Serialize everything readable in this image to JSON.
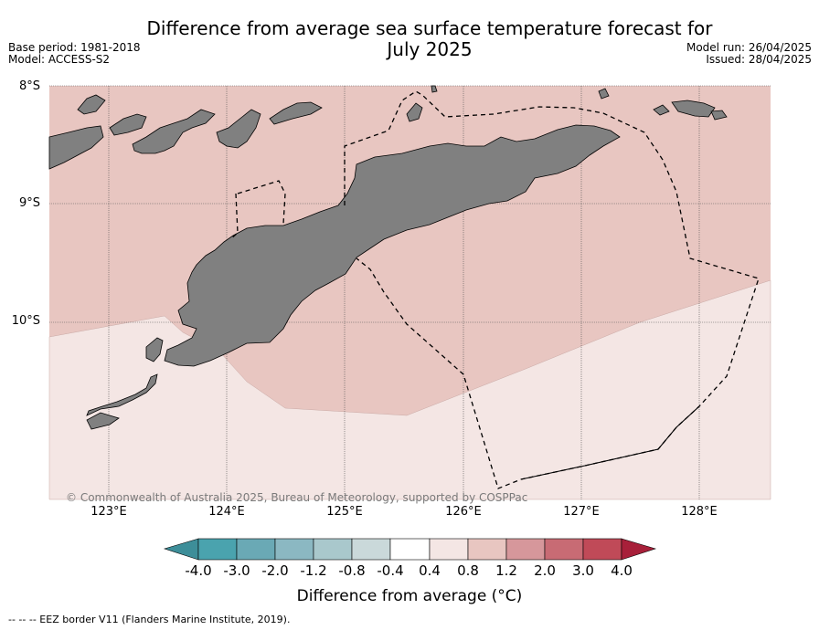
{
  "title": "Difference from average sea surface temperature forecast for July 2025",
  "title_line1": "Difference from average sea surface temperature forecast for",
  "title_line2": "July 2025",
  "meta": {
    "base_period": "Base period: 1981-2018",
    "model": "Model: ACCESS-S2",
    "model_run": "Model run: 26/04/2025",
    "issued": "Issued: 28/04/2025"
  },
  "map": {
    "lon_range": [
      122.5,
      128.6
    ],
    "lat_range": [
      -11.5,
      -8.0
    ],
    "lat_ticks": [
      {
        "value": -8,
        "label": "8°S"
      },
      {
        "value": -9,
        "label": "9°S"
      },
      {
        "value": -10,
        "label": "10°S"
      }
    ],
    "lon_ticks": [
      {
        "value": 123,
        "label": "123°E"
      },
      {
        "value": 124,
        "label": "124°E"
      },
      {
        "value": 125,
        "label": "125°E"
      },
      {
        "value": 126,
        "label": "126°E"
      },
      {
        "value": 127,
        "label": "127°E"
      },
      {
        "value": 128,
        "label": "128°E"
      }
    ],
    "colors": {
      "anomaly_0_8_to_1_2": "#e8c6c1",
      "anomaly_0_4_to_0_8": "#f4e6e4",
      "land": "#808080",
      "eez_border": "#000000"
    }
  },
  "copyright": "© Commonwealth of Australia 2025, Bureau of Meteorology, supported by COSPPac",
  "colorbar": {
    "title": "Difference from average (°C)",
    "labels": [
      "-4.0",
      "-3.0",
      "-2.0",
      "-1.2",
      "-0.8",
      "-0.4",
      "0.4",
      "0.8",
      "1.2",
      "2.0",
      "3.0",
      "4.0"
    ],
    "colors": [
      "#3d8e99",
      "#4aa3ae",
      "#6aa9b5",
      "#8bb8c2",
      "#a9c8cc",
      "#cad9da",
      "#ffffff",
      "#f4e6e4",
      "#e8c6c1",
      "#d6979b",
      "#c86b74",
      "#c04a58",
      "#a8203a"
    ]
  },
  "footer": "-- -- -- EEZ border V11 (Flanders Marine Institute, 2019)."
}
